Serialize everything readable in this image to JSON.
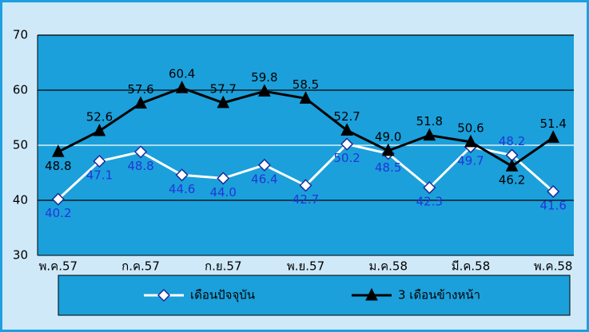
{
  "chart_data": {
    "type": "line",
    "categories": [
      "พ.ค.57",
      null,
      "ก.ค.57",
      null,
      "ก.ย.57",
      null,
      "พ.ย.57",
      null,
      "ม.ค.58",
      null,
      "มี.ค.58",
      null,
      "พ.ค.58"
    ],
    "series": [
      {
        "name": "เดือนปัจจุบัน",
        "color": "#ffffff",
        "marker": "diamond",
        "values": [
          40.2,
          47.1,
          48.8,
          44.6,
          44.0,
          46.4,
          42.7,
          50.2,
          48.5,
          42.3,
          49.7,
          48.2,
          41.6
        ],
        "value_labels": [
          "40.2",
          "47.1",
          "48.8",
          "44.6",
          "44.0",
          "46.4",
          "42.7",
          "50.2",
          "48.5",
          "42.3",
          "49.7",
          "48.2",
          "41.6"
        ]
      },
      {
        "name": "3 เดือนข้างหน้า",
        "color": "#000000",
        "marker": "triangle",
        "values": [
          48.8,
          52.6,
          57.6,
          60.4,
          57.7,
          59.8,
          58.5,
          52.7,
          49.0,
          51.8,
          50.6,
          46.2,
          51.4
        ],
        "value_labels": [
          "48.8",
          "52.6",
          "57.6",
          "60.4",
          "57.7",
          "59.8",
          "58.5",
          "52.7",
          "49.0",
          "51.8",
          "50.6",
          "46.2",
          "51.4"
        ]
      }
    ],
    "ylim": [
      30,
      70
    ],
    "yticks": [
      30,
      40,
      50,
      60,
      70
    ],
    "grid": true,
    "legend": "bottom"
  }
}
